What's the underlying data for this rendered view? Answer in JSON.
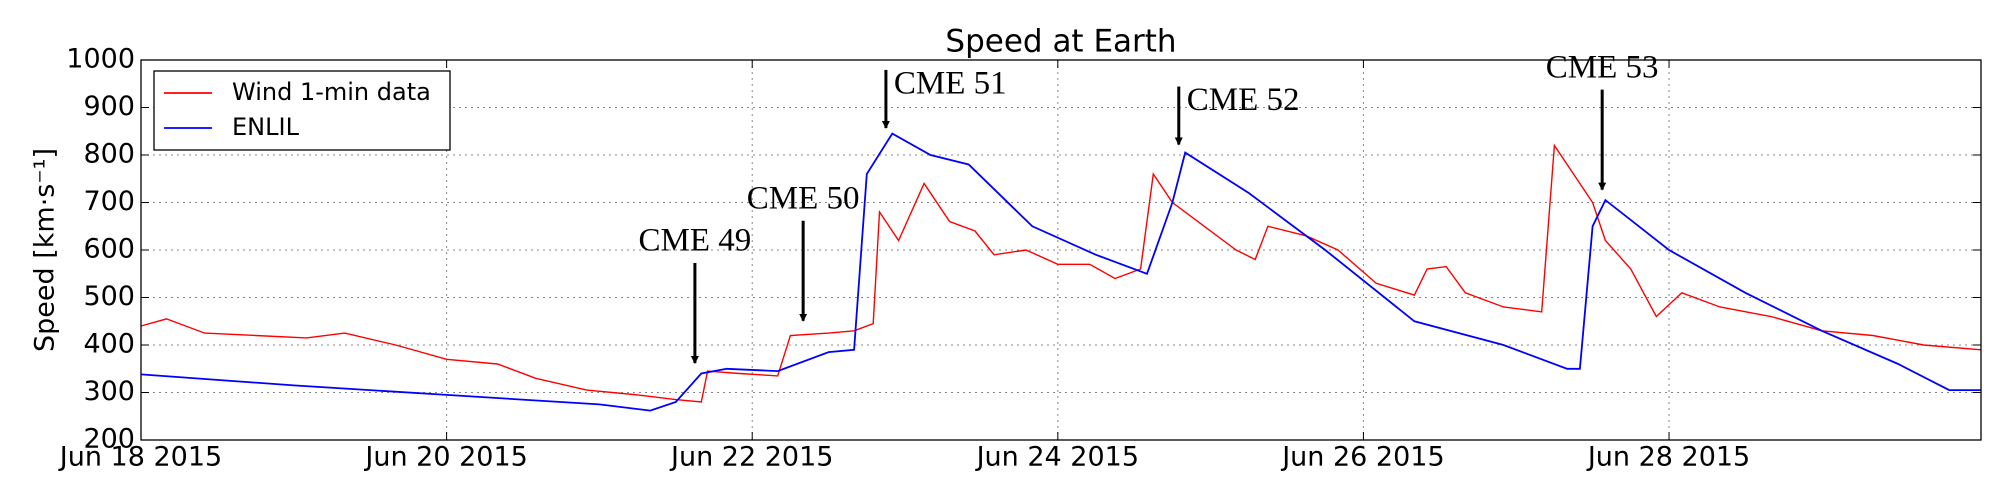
{
  "chart_data": {
    "type": "line",
    "title": "Speed at Earth",
    "ylabel": "Speed  [km·s⁻¹]",
    "xlim": [
      "2015-06-18 00:00",
      "2015-06-30 01:00"
    ],
    "xticks": [
      {
        "value": "2015-06-18 00:00",
        "label": "Jun 18 2015"
      },
      {
        "value": "2015-06-20 00:00",
        "label": "Jun 20 2015"
      },
      {
        "value": "2015-06-22 00:00",
        "label": "Jun 22 2015"
      },
      {
        "value": "2015-06-24 00:00",
        "label": "Jun 24 2015"
      },
      {
        "value": "2015-06-26 00:00",
        "label": "Jun 26 2015"
      },
      {
        "value": "2015-06-28 00:00",
        "label": "Jun 28 2015"
      }
    ],
    "ylim": [
      200,
      1000
    ],
    "yticks": [
      200,
      300,
      400,
      500,
      600,
      700,
      800,
      900,
      1000
    ],
    "grid": true,
    "legend": "upper left",
    "series": [
      {
        "name": "Wind 1-min data",
        "color": "#ff0000",
        "x": [
          "2015-06-18 00:00",
          "2015-06-18 04:00",
          "2015-06-18 10:00",
          "2015-06-18 18:00",
          "2015-06-19 02:00",
          "2015-06-19 08:00",
          "2015-06-19 16:00",
          "2015-06-20 00:00",
          "2015-06-20 08:00",
          "2015-06-20 14:00",
          "2015-06-20 22:00",
          "2015-06-21 06:00",
          "2015-06-21 12:00",
          "2015-06-21 16:00",
          "2015-06-21 17:00",
          "2015-06-21 22:00",
          "2015-06-22 04:00",
          "2015-06-22 06:00",
          "2015-06-22 12:00",
          "2015-06-22 16:00",
          "2015-06-22 19:00",
          "2015-06-22 20:00",
          "2015-06-22 23:00",
          "2015-06-23 03:00",
          "2015-06-23 07:00",
          "2015-06-23 11:00",
          "2015-06-23 14:00",
          "2015-06-23 19:00",
          "2015-06-24 00:00",
          "2015-06-24 05:00",
          "2015-06-24 09:00",
          "2015-06-24 13:00",
          "2015-06-24 15:00",
          "2015-06-24 18:00",
          "2015-06-24 23:00",
          "2015-06-25 04:00",
          "2015-06-25 07:00",
          "2015-06-25 09:00",
          "2015-06-25 15:00",
          "2015-06-25 20:00",
          "2015-06-26 02:00",
          "2015-06-26 08:00",
          "2015-06-26 10:00",
          "2015-06-26 13:00",
          "2015-06-26 16:00",
          "2015-06-26 22:00",
          "2015-06-27 04:00",
          "2015-06-27 06:00",
          "2015-06-27 12:00",
          "2015-06-27 14:00",
          "2015-06-27 18:00",
          "2015-06-27 22:00",
          "2015-06-28 02:00",
          "2015-06-28 08:00",
          "2015-06-28 16:00",
          "2015-06-29 00:00",
          "2015-06-29 08:00",
          "2015-06-29 16:00",
          "2015-06-30 01:00"
        ],
        "values": [
          440,
          455,
          425,
          420,
          415,
          425,
          400,
          370,
          360,
          330,
          305,
          295,
          285,
          280,
          345,
          340,
          335,
          420,
          425,
          430,
          445,
          680,
          620,
          740,
          660,
          640,
          590,
          600,
          570,
          570,
          540,
          560,
          760,
          700,
          650,
          600,
          580,
          650,
          630,
          600,
          530,
          505,
          560,
          565,
          510,
          480,
          470,
          820,
          700,
          620,
          560,
          460,
          510,
          480,
          460,
          430,
          420,
          400,
          390
        ]
      },
      {
        "name": "ENLIL",
        "color": "#0000ff",
        "x": [
          "2015-06-18 00:00",
          "2015-06-19 00:00",
          "2015-06-20 00:00",
          "2015-06-21 00:00",
          "2015-06-21 08:00",
          "2015-06-21 12:00",
          "2015-06-21 16:00",
          "2015-06-21 20:00",
          "2015-06-22 04:00",
          "2015-06-22 12:00",
          "2015-06-22 16:00",
          "2015-06-22 18:00",
          "2015-06-22 22:00",
          "2015-06-23 04:00",
          "2015-06-23 10:00",
          "2015-06-23 20:00",
          "2015-06-24 06:00",
          "2015-06-24 14:00",
          "2015-06-24 18:00",
          "2015-06-24 20:00",
          "2015-06-25 06:00",
          "2015-06-25 18:00",
          "2015-06-26 08:00",
          "2015-06-26 22:00",
          "2015-06-27 08:00",
          "2015-06-27 10:00",
          "2015-06-27 12:00",
          "2015-06-27 14:00",
          "2015-06-28 00:00",
          "2015-06-28 12:00",
          "2015-06-29 00:00",
          "2015-06-29 12:00",
          "2015-06-29 20:00",
          "2015-06-30 01:00"
        ],
        "values": [
          338,
          315,
          295,
          275,
          262,
          280,
          340,
          350,
          345,
          385,
          390,
          760,
          845,
          800,
          780,
          650,
          590,
          550,
          700,
          805,
          720,
          600,
          450,
          400,
          350,
          350,
          650,
          705,
          600,
          510,
          430,
          360,
          305,
          305
        ]
      }
    ],
    "annotations": [
      {
        "text": "CME 49",
        "x": "2015-06-21 15:00",
        "y": 362
      },
      {
        "text": "CME 50",
        "x": "2015-06-22 08:00",
        "y": 451
      },
      {
        "text": "CME 51",
        "x": "2015-06-22 21:00",
        "y": 857
      },
      {
        "text": "CME 52",
        "x": "2015-06-24 19:00",
        "y": 822
      },
      {
        "text": "CME 53",
        "x": "2015-06-27 13:30",
        "y": 727
      }
    ]
  }
}
